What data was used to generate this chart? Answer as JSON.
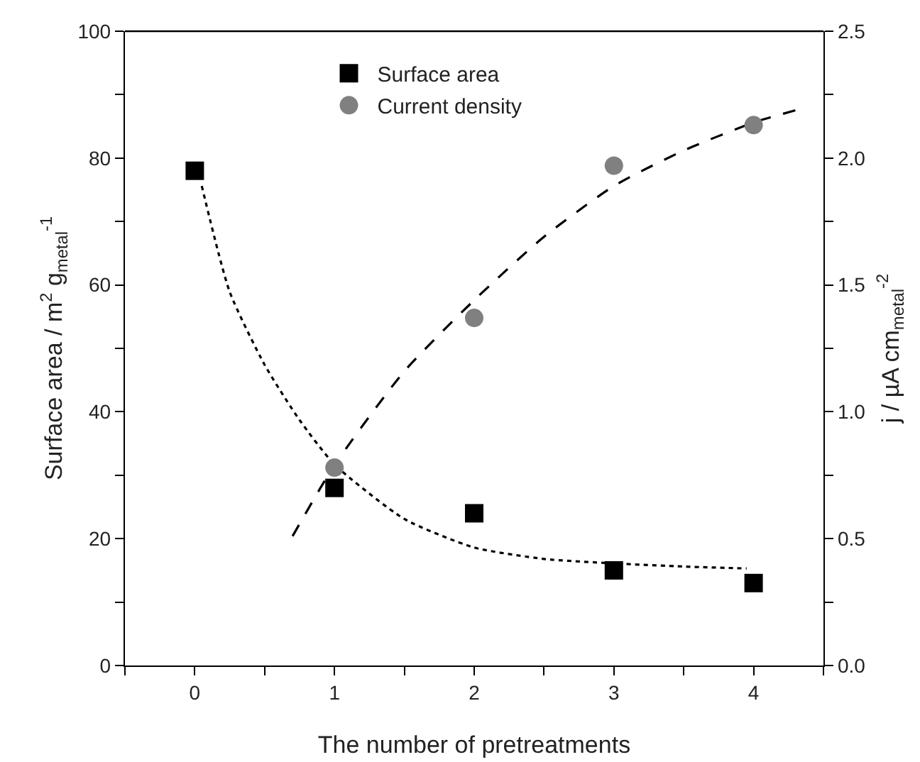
{
  "chart_data": {
    "type": "scatter",
    "xlabel": "The number of pretreatments",
    "ylabel": "Surface area / m$^{2}$ g$_{metal}$$^{-1}$",
    "y2label": "j / µA cm$_{metal}$$^{-2}$",
    "xlim": [
      -0.5,
      4.5
    ],
    "xticks": [
      {
        "value": -0.5,
        "label": null
      },
      0,
      {
        "value": 0.5,
        "label": null
      },
      1,
      {
        "value": 1.5,
        "label": null
      },
      2,
      {
        "value": 2.5,
        "label": null
      },
      3,
      {
        "value": 3.5,
        "label": null
      },
      4,
      {
        "value": 4.5,
        "label": null
      }
    ],
    "ylim": [
      0,
      100
    ],
    "yticks": [
      0,
      {
        "value": 10,
        "label": null
      },
      20,
      {
        "value": 30,
        "label": null
      },
      40,
      {
        "value": 50,
        "label": null
      },
      60,
      {
        "value": 70,
        "label": null
      },
      80,
      {
        "value": 90,
        "label": null
      },
      100
    ],
    "y2lim": [
      0,
      2.5
    ],
    "y2ticks": [
      "0.0",
      {
        "value": 0.25,
        "label": null
      },
      {
        "value": 0.5,
        "label": "0.5"
      },
      {
        "value": 0.75,
        "label": null
      },
      {
        "value": 1,
        "label": "1.0"
      },
      {
        "value": 1.25,
        "label": null
      },
      {
        "value": 1.5,
        "label": "1.5"
      },
      {
        "value": 1.75,
        "label": null
      },
      {
        "value": 2,
        "label": "2.0"
      },
      {
        "value": 2.25,
        "label": null
      },
      {
        "value": 2.5,
        "label": "2.5"
      }
    ],
    "grid": false,
    "legend": "top",
    "series": [
      {
        "type": "line",
        "color": "#000000",
        "line_style": "dotted",
        "x": [
          0.05,
          0.25,
          0.5,
          0.75,
          1,
          1.5,
          2,
          2.5,
          3,
          3.5,
          3.95
        ],
        "values": [
          75.6,
          58.9,
          47.4,
          38.7,
          31.7,
          23.1,
          18.6,
          16.8,
          16.1,
          15.6,
          15.3
        ]
      },
      {
        "type": "line",
        "axis": "y2",
        "color": "#000000",
        "line_style": "dashed",
        "x": [
          0.7,
          1,
          1.5,
          2,
          2.5,
          3,
          3.5,
          4,
          4.31
        ],
        "values": [
          0.51,
          0.79,
          1.16,
          1.44,
          1.69,
          1.89,
          2.03,
          2.14,
          2.19
        ]
      },
      {
        "name": "Surface area",
        "marker": "square",
        "color": "#000000",
        "x": [
          0,
          1,
          2,
          3,
          4
        ],
        "values": [
          78,
          28,
          24,
          15,
          13
        ]
      },
      {
        "name": "Current density",
        "marker": "circle",
        "axis": "y2",
        "color": "#808080",
        "x": [
          1,
          2,
          3,
          4
        ],
        "values": [
          0.78,
          1.37,
          1.97,
          2.13
        ]
      }
    ]
  }
}
